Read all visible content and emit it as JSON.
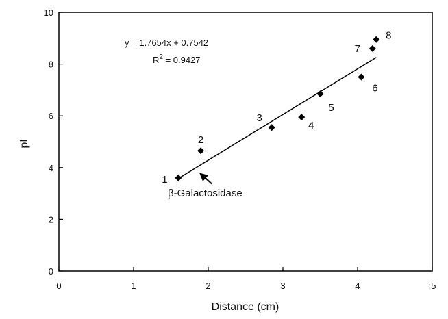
{
  "chart_data": {
    "type": "scatter",
    "title": "",
    "xlabel": "Distance (cm)",
    "ylabel": "pI",
    "xlim": [
      0,
      5
    ],
    "ylim": [
      0,
      10
    ],
    "xticks": [
      0,
      1,
      2,
      3,
      4,
      5
    ],
    "xtick_labels": [
      "0",
      "1",
      "2",
      "3",
      "4",
      ":5"
    ],
    "yticks": [
      0,
      2,
      4,
      6,
      8,
      10
    ],
    "ytick_labels": [
      "0",
      "2",
      "4",
      "6",
      "8",
      "10"
    ],
    "grid": false,
    "legend": "none",
    "marker_color": "#000000",
    "series": [
      {
        "points": [
          {
            "x": 1.6,
            "y": 3.6,
            "label": "1"
          },
          {
            "x": 1.9,
            "y": 4.65,
            "label": "2"
          },
          {
            "x": 2.85,
            "y": 5.55,
            "label": "3"
          },
          {
            "x": 3.25,
            "y": 5.95,
            "label": "4"
          },
          {
            "x": 3.5,
            "y": 6.85,
            "label": "5"
          },
          {
            "x": 4.05,
            "y": 7.5,
            "label": "6"
          },
          {
            "x": 4.2,
            "y": 8.6,
            "label": "7"
          },
          {
            "x": 4.25,
            "y": 8.95,
            "label": "8"
          }
        ]
      }
    ],
    "trendline": {
      "slope": 1.7654,
      "intercept": 0.7542,
      "x_range": [
        1.6,
        4.25
      ],
      "equation": "y = 1.7654x + 0.7542",
      "r2_prefix": "R",
      "r2_sup": "2",
      "r2_value": " = 0.9427"
    },
    "annotation": {
      "text": "β-Galactosidase",
      "points_to": {
        "x": 1.9,
        "y": 3.85
      }
    }
  }
}
